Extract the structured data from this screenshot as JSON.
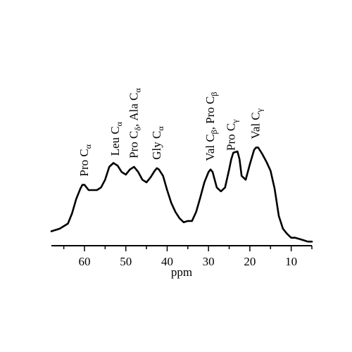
{
  "chart_data": {
    "type": "line",
    "title": "",
    "xlabel": "ppm",
    "ylabel": "",
    "xlim": [
      68,
      5
    ],
    "ylim": [
      0,
      1
    ],
    "x_reversed": true,
    "grid": false,
    "x_ticks": [
      60,
      50,
      40,
      30,
      20,
      10
    ],
    "series": [
      {
        "x": [
          68,
          66,
          64,
          63,
          62,
          61,
          60.5,
          60,
          59,
          58,
          57,
          56,
          55,
          54,
          53,
          52.5,
          52,
          51,
          50,
          49,
          48,
          47,
          46,
          45,
          44,
          43,
          42.5,
          42,
          41,
          40,
          39,
          38,
          37,
          36,
          35,
          34,
          33,
          32,
          31,
          30,
          29.5,
          29,
          28,
          27,
          26,
          25,
          24.5,
          24,
          23,
          22.5,
          22,
          21,
          20,
          19,
          18.5,
          18,
          17,
          16,
          15,
          14,
          13,
          12,
          11,
          10,
          9,
          8,
          7,
          6,
          5
        ],
        "y": [
          0.09,
          0.11,
          0.15,
          0.23,
          0.34,
          0.42,
          0.45,
          0.45,
          0.41,
          0.41,
          0.41,
          0.43,
          0.49,
          0.59,
          0.62,
          0.61,
          0.6,
          0.55,
          0.53,
          0.57,
          0.59,
          0.55,
          0.49,
          0.47,
          0.51,
          0.56,
          0.58,
          0.57,
          0.52,
          0.41,
          0.31,
          0.24,
          0.19,
          0.16,
          0.17,
          0.17,
          0.24,
          0.35,
          0.47,
          0.55,
          0.57,
          0.55,
          0.43,
          0.4,
          0.43,
          0.57,
          0.65,
          0.7,
          0.71,
          0.65,
          0.52,
          0.49,
          0.61,
          0.72,
          0.74,
          0.74,
          0.69,
          0.63,
          0.56,
          0.42,
          0.21,
          0.11,
          0.07,
          0.04,
          0.04,
          0.03,
          0.02,
          0.01,
          0.01
        ]
      }
    ],
    "annotations": [
      {
        "main": "Pro C",
        "sub": "α",
        "x": 60
      },
      {
        "main": "Leu C",
        "sub": "α",
        "x": 52.5
      },
      {
        "main": "Pro C",
        "sub": "δ",
        "tail": ", Ala C",
        "sub2": "α",
        "x": 48
      },
      {
        "main": "Gly C",
        "sub": "α",
        "x": 42.5
      },
      {
        "main": "Val C",
        "sub": "β",
        "tail": ", Pro C",
        "sub2": "β",
        "x": 29.5
      },
      {
        "main": "Pro C",
        "sub": "γ",
        "x": 24.5
      },
      {
        "main": "Val C",
        "sub": "γ",
        "x": 18.5
      }
    ]
  }
}
